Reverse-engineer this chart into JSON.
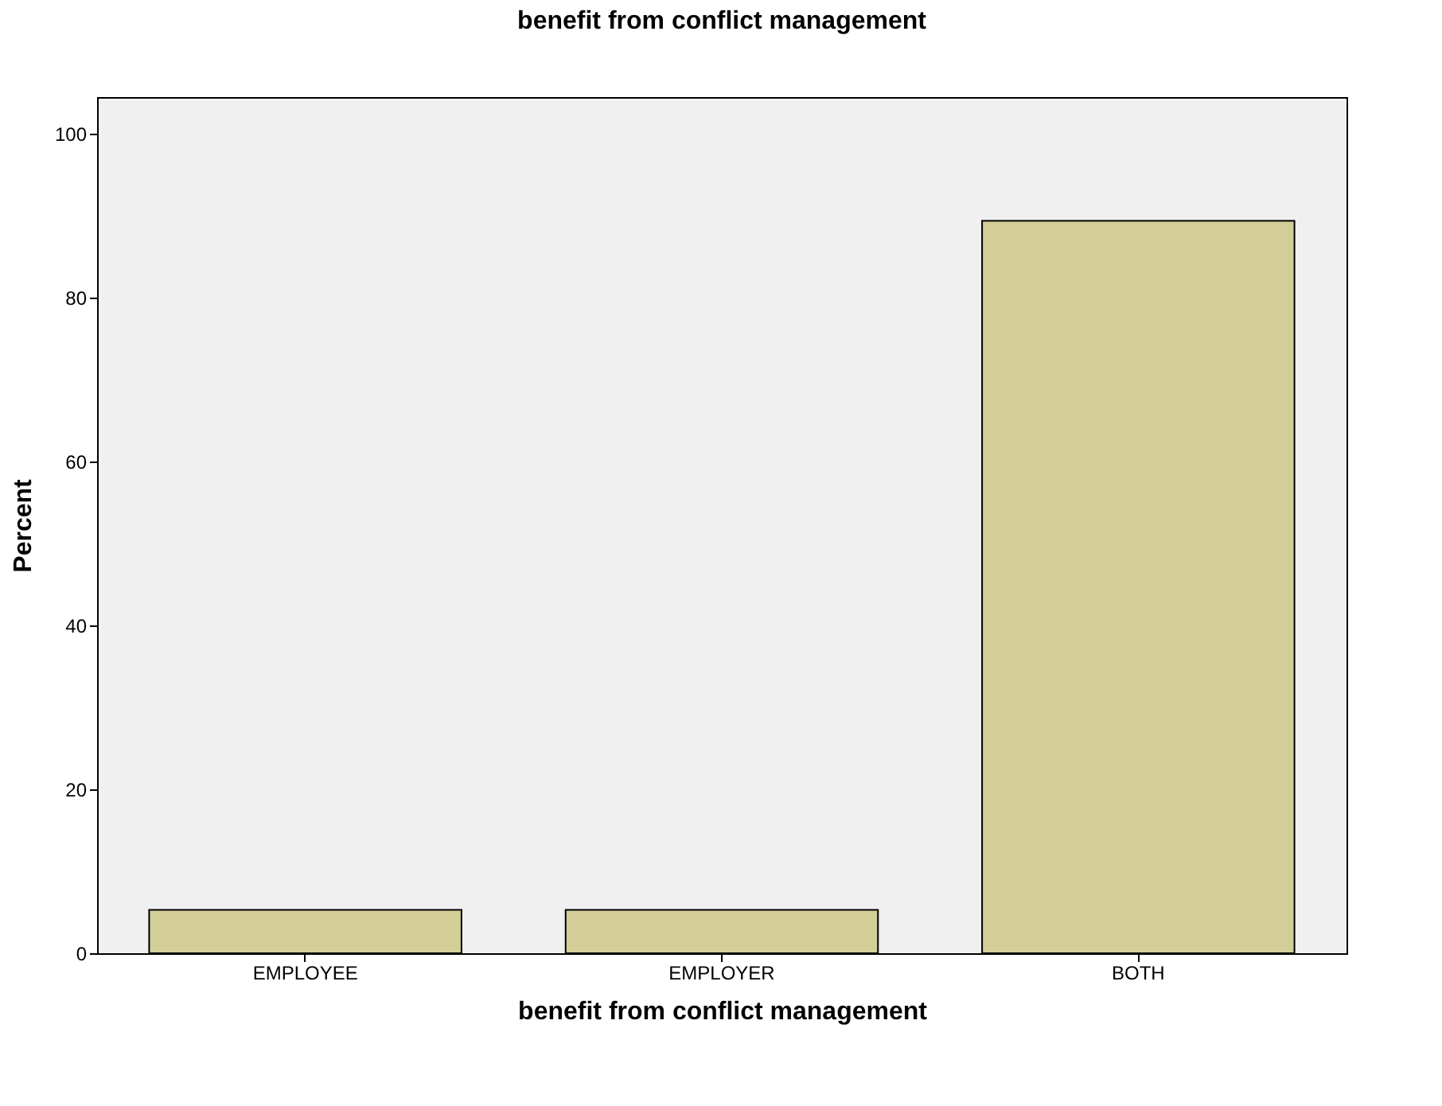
{
  "chart_data": {
    "type": "bar",
    "title": "benefit from conflict management",
    "xlabel": "benefit from conflict management",
    "ylabel": "Percent",
    "categories": [
      "EMPLOYEE",
      "EMPLOYER",
      "BOTH"
    ],
    "values": [
      5.3,
      5.3,
      89.4
    ],
    "color": "#d3ce98",
    "ylim": [
      0,
      104.5
    ],
    "yticks": [
      0,
      20,
      40,
      60,
      80,
      100
    ],
    "grid": false
  }
}
